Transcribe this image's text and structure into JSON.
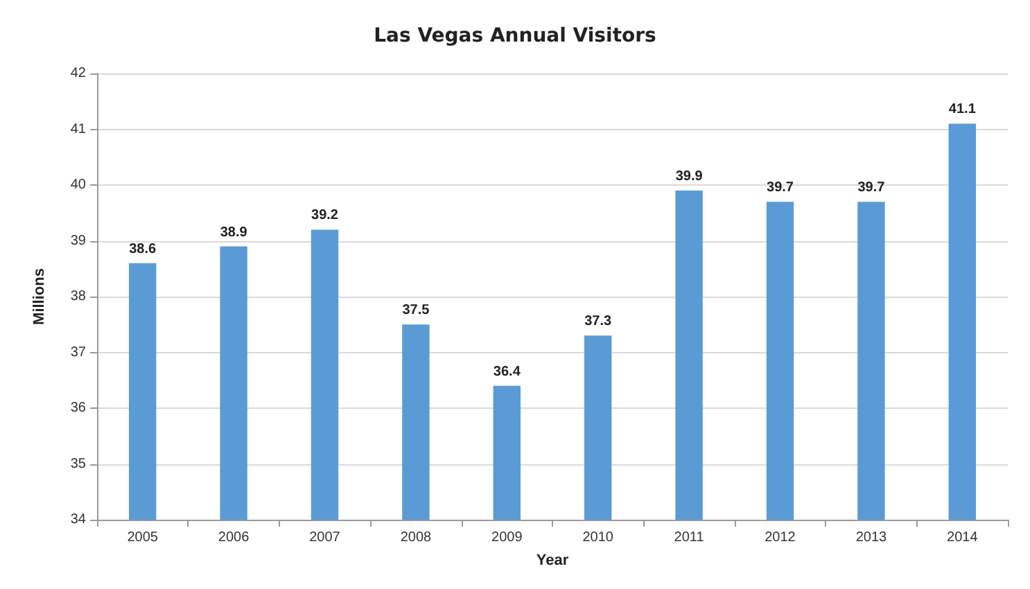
{
  "chart_data": {
    "type": "bar",
    "title": "Las Vegas Annual Visitors",
    "xlabel": "Year",
    "ylabel": "Millions",
    "categories": [
      "2005",
      "2006",
      "2007",
      "2008",
      "2009",
      "2010",
      "2011",
      "2012",
      "2013",
      "2014"
    ],
    "values": [
      38.6,
      38.9,
      39.2,
      37.5,
      36.4,
      37.3,
      39.9,
      39.7,
      39.7,
      41.1
    ],
    "color": "#5b9bd5",
    "ylim": [
      34,
      42
    ],
    "yticks": [
      34,
      35,
      36,
      37,
      38,
      39,
      40,
      41,
      42
    ],
    "grid": "y",
    "data_labels": true
  }
}
